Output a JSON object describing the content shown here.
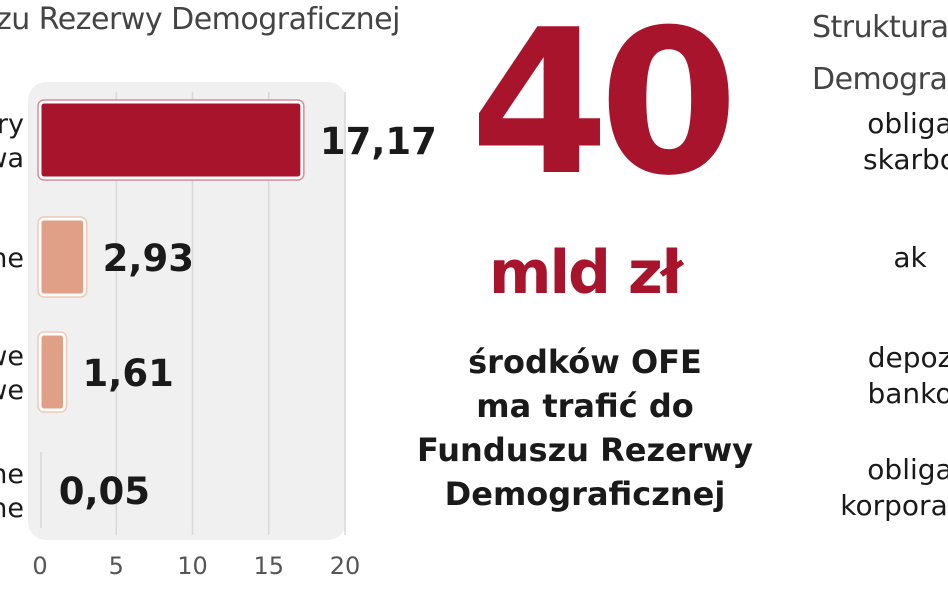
{
  "left_title": "zu Rezerwy Demograficznej",
  "right_title": [
    "Struktura",
    "Demogra"
  ],
  "big_number": "40",
  "big_unit": "mld zł",
  "description": [
    "środków OFE",
    "ma trafić do",
    "Funduszu Rezerwy",
    "Demograficznej"
  ],
  "structure_items": [
    [
      "obliga",
      "skarbo"
    ],
    [
      "ak"
    ],
    [
      "depoz",
      "banko"
    ],
    [
      "obliga",
      "korporacy"
    ]
  ],
  "colors": {
    "primary": "#a8142c",
    "secondary": "#e0a088",
    "panel": "#f0f0f0",
    "text": "#1a1a1a"
  },
  "chart_data": {
    "type": "bar",
    "orientation": "horizontal",
    "categories": [
      [
        "ry",
        "wa"
      ],
      [
        "ne"
      ],
      [
        "we",
        "we"
      ],
      [
        "ne",
        "ne"
      ]
    ],
    "values": [
      17.17,
      2.93,
      1.61,
      0.05
    ],
    "value_labels": [
      "17,17",
      "2,93",
      "1,61",
      "0,05"
    ],
    "xticks": [
      0,
      5,
      10,
      15,
      20
    ],
    "xlim": [
      0,
      20
    ],
    "grid": true
  }
}
